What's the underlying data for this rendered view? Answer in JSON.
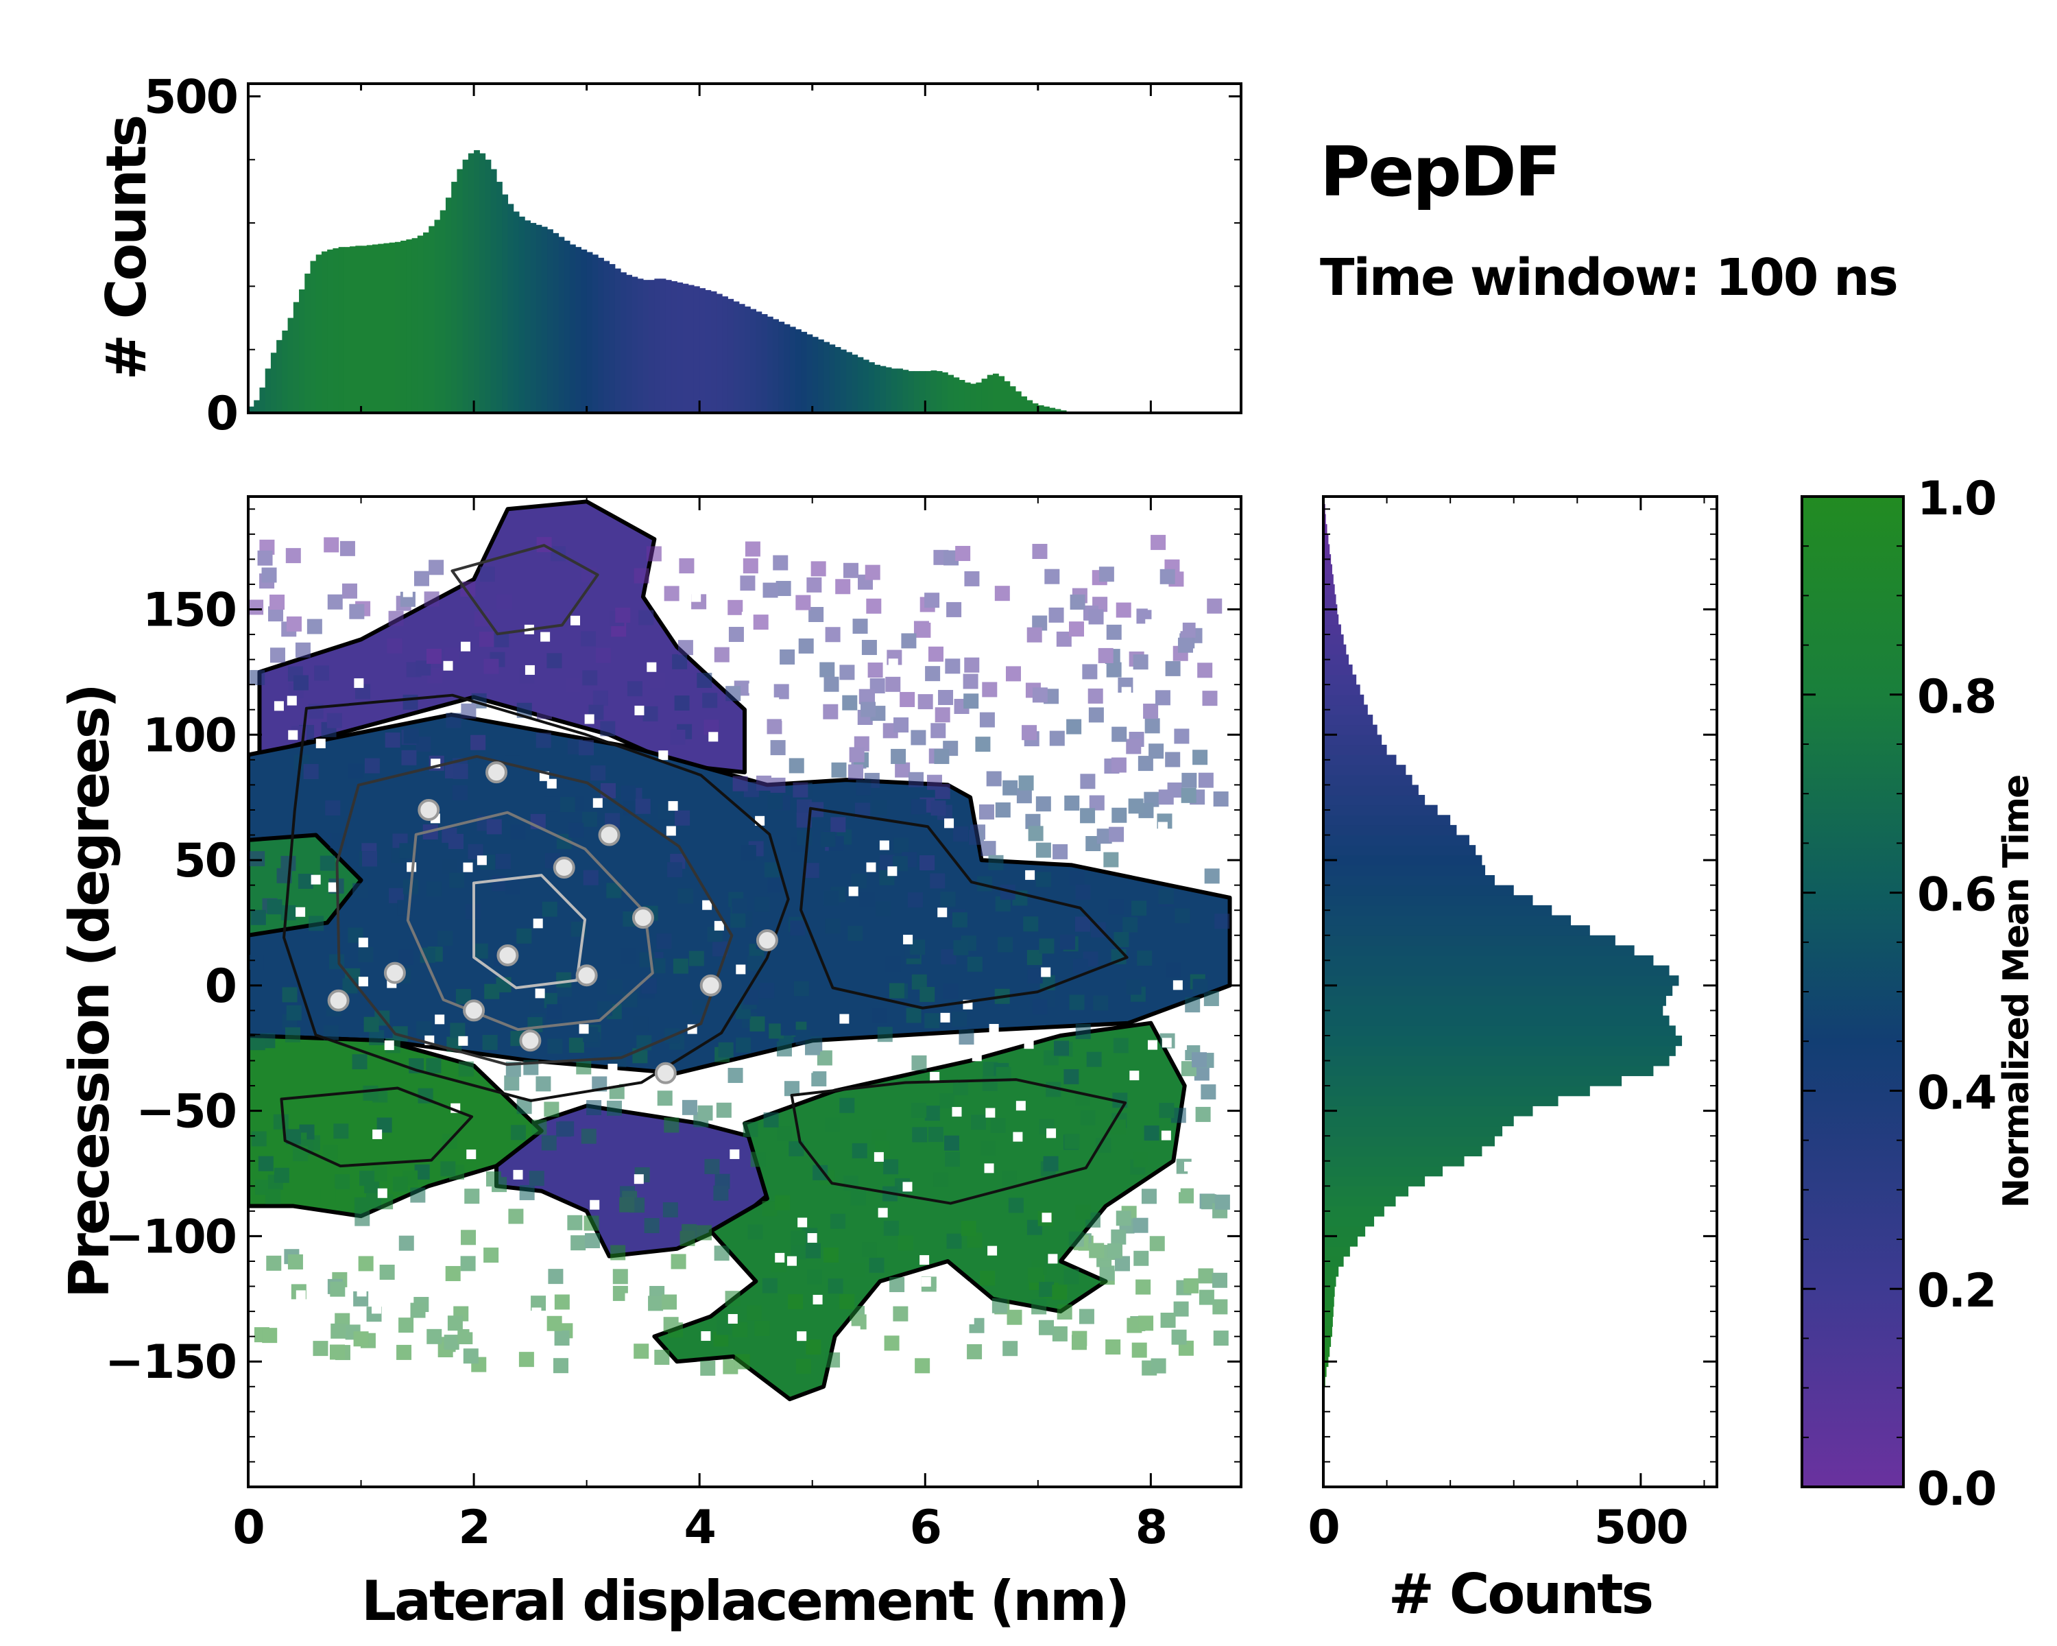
{
  "chart_data": {
    "type": "heatmap",
    "title": "PepDF",
    "subtitle": "Time window: 100 ns",
    "main": {
      "xlabel": "Lateral displacement (nm)",
      "ylabel": "Precession (degrees)",
      "xlim": [
        0,
        8.8
      ],
      "ylim": [
        -200,
        195
      ],
      "xticks": [
        "0",
        "2",
        "4",
        "6",
        "8"
      ],
      "xtick_values": [
        0,
        2,
        4,
        6,
        8
      ],
      "yticks": [
        "150",
        "100",
        "50",
        "0",
        "−50",
        "−100",
        "−150"
      ],
      "ytick_values": [
        150,
        100,
        50,
        0,
        -50,
        -100,
        -150
      ],
      "regions": [
        {
          "name": "upper-purple-lobe",
          "color_value": 0.15,
          "points": [
            [
              0.1,
              125
            ],
            [
              1,
              138
            ],
            [
              2,
              162
            ],
            [
              2.3,
              190
            ],
            [
              3,
              193
            ],
            [
              3.6,
              178
            ],
            [
              3.5,
              155
            ],
            [
              3.8,
              135
            ],
            [
              4.4,
              110
            ],
            [
              4.4,
              85
            ],
            [
              3.8,
              88
            ],
            [
              3.2,
              100
            ],
            [
              2,
              115
            ],
            [
              0.1,
              92
            ]
          ]
        },
        {
          "name": "central-blue-region",
          "color_value": 0.42,
          "points": [
            [
              0,
              92
            ],
            [
              1.8,
              108
            ],
            [
              3.4,
              95
            ],
            [
              4.6,
              80
            ],
            [
              5.3,
              82
            ],
            [
              6.2,
              80
            ],
            [
              6.4,
              75
            ],
            [
              6.5,
              50
            ],
            [
              7.3,
              48
            ],
            [
              8.7,
              35
            ],
            [
              8.7,
              0
            ],
            [
              7.8,
              -15
            ],
            [
              6.5,
              -18
            ],
            [
              5,
              -22
            ],
            [
              3.8,
              -35
            ],
            [
              2.5,
              -30
            ],
            [
              1.2,
              -22
            ],
            [
              0,
              -20
            ]
          ]
        },
        {
          "name": "left-green-patch",
          "color_value": 0.78,
          "points": [
            [
              0,
              58
            ],
            [
              0.6,
              60
            ],
            [
              1,
              42
            ],
            [
              0.7,
              25
            ],
            [
              0,
              20
            ]
          ]
        },
        {
          "name": "lower-purple-lobe",
          "color_value": 0.18,
          "points": [
            [
              2.2,
              -60
            ],
            [
              3,
              -48
            ],
            [
              4,
              -55
            ],
            [
              4.6,
              -62
            ],
            [
              4.7,
              -80
            ],
            [
              4.3,
              -95
            ],
            [
              3.8,
              -105
            ],
            [
              3.2,
              -108
            ],
            [
              3,
              -90
            ],
            [
              2.6,
              -82
            ],
            [
              2.2,
              -80
            ]
          ]
        },
        {
          "name": "lower-left-green-lobe",
          "color_value": 0.92,
          "points": [
            [
              0,
              -20
            ],
            [
              1.2,
              -22
            ],
            [
              2,
              -32
            ],
            [
              2.6,
              -58
            ],
            [
              2.2,
              -72
            ],
            [
              1.6,
              -80
            ],
            [
              1,
              -92
            ],
            [
              0.4,
              -88
            ],
            [
              0,
              -88
            ]
          ]
        },
        {
          "name": "lower-right-green-lobe",
          "color_value": 0.85,
          "points": [
            [
              4.4,
              -55
            ],
            [
              5.2,
              -42
            ],
            [
              6.4,
              -30
            ],
            [
              7.2,
              -20
            ],
            [
              8,
              -15
            ],
            [
              8.3,
              -40
            ],
            [
              8.2,
              -70
            ],
            [
              7.6,
              -88
            ],
            [
              7.2,
              -110
            ],
            [
              7.6,
              -118
            ],
            [
              7.2,
              -130
            ],
            [
              6.6,
              -125
            ],
            [
              6.2,
              -110
            ],
            [
              5.6,
              -118
            ],
            [
              5.2,
              -140
            ],
            [
              5.1,
              -160
            ],
            [
              4.8,
              -165
            ],
            [
              4.3,
              -148
            ],
            [
              3.8,
              -150
            ],
            [
              3.6,
              -140
            ],
            [
              4.1,
              -132
            ],
            [
              4.5,
              -118
            ],
            [
              4.1,
              -98
            ],
            [
              4.6,
              -85
            ]
          ]
        }
      ],
      "overlay": {
        "bright_spots": [
          [
            1.6,
            70
          ],
          [
            2.2,
            85
          ],
          [
            2.8,
            47
          ],
          [
            2.3,
            12
          ],
          [
            3,
            4
          ],
          [
            2.5,
            -22
          ],
          [
            3.7,
            -35
          ],
          [
            0.8,
            -6
          ],
          [
            4.1,
            0
          ],
          [
            1.3,
            5
          ],
          [
            3.5,
            27
          ],
          [
            2,
            -10
          ],
          [
            4.6,
            18
          ],
          [
            3.2,
            60
          ]
        ],
        "contour_rings": [
          {
            "level": "outer",
            "points": [
              [
                0.5,
                110
              ],
              [
                1.8,
                115
              ],
              [
                3,
                100
              ],
              [
                4,
                85
              ],
              [
                4.6,
                60
              ],
              [
                4.8,
                35
              ],
              [
                4.6,
                10
              ],
              [
                4.2,
                -20
              ],
              [
                3.5,
                -40
              ],
              [
                2.5,
                -45
              ],
              [
                1.5,
                -35
              ],
              [
                0.6,
                -20
              ],
              [
                0.3,
                20
              ],
              [
                0.4,
                70
              ]
            ]
          },
          {
            "level": "middle",
            "points": [
              [
                1,
                80
              ],
              [
                2,
                92
              ],
              [
                3,
                80
              ],
              [
                3.8,
                55
              ],
              [
                4.3,
                20
              ],
              [
                4,
                -15
              ],
              [
                3.3,
                -30
              ],
              [
                2.3,
                -32
              ],
              [
                1.3,
                -20
              ],
              [
                0.8,
                10
              ],
              [
                0.8,
                50
              ]
            ]
          },
          {
            "level": "inner",
            "points": [
              [
                1.5,
                60
              ],
              [
                2.3,
                70
              ],
              [
                3,
                55
              ],
              [
                3.5,
                30
              ],
              [
                3.6,
                5
              ],
              [
                3.1,
                -15
              ],
              [
                2.4,
                -18
              ],
              [
                1.7,
                -5
              ],
              [
                1.4,
                25
              ]
            ]
          },
          {
            "level": "core",
            "points": [
              [
                2,
                40
              ],
              [
                2.6,
                45
              ],
              [
                3,
                25
              ],
              [
                2.9,
                2
              ],
              [
                2.4,
                -2
              ],
              [
                2,
                10
              ]
            ]
          },
          {
            "level": "outer",
            "points": [
              [
                5,
                70
              ],
              [
                6,
                62
              ],
              [
                6.4,
                40
              ],
              [
                7.4,
                30
              ],
              [
                7.8,
                10
              ],
              [
                7,
                -2
              ],
              [
                6,
                -8
              ],
              [
                5.2,
                0
              ],
              [
                4.9,
                30
              ]
            ]
          },
          {
            "level": "outer",
            "points": [
              [
                4.8,
                -45
              ],
              [
                5.8,
                -40
              ],
              [
                6.8,
                -38
              ],
              [
                7.8,
                -48
              ],
              [
                7.4,
                -72
              ],
              [
                6.2,
                -88
              ],
              [
                5.2,
                -80
              ],
              [
                4.9,
                -62
              ]
            ]
          },
          {
            "level": "middle",
            "points": [
              [
                1.8,
                165
              ],
              [
                2.6,
                175
              ],
              [
                3.1,
                165
              ],
              [
                2.8,
                145
              ],
              [
                2.2,
                140
              ]
            ]
          },
          {
            "level": "outer",
            "points": [
              [
                0.3,
                -45
              ],
              [
                1.3,
                -40
              ],
              [
                2,
                -52
              ],
              [
                1.6,
                -70
              ],
              [
                0.8,
                -72
              ],
              [
                0.3,
                -62
              ]
            ]
          }
        ]
      }
    },
    "top_histogram": {
      "ylabel": "# Counts",
      "ylim": [
        0,
        520
      ],
      "yticks": [
        "0",
        "500"
      ],
      "ytick_values": [
        0,
        500
      ],
      "bin_width": 0.05,
      "counts": [
        10,
        20,
        40,
        70,
        95,
        115,
        130,
        150,
        175,
        195,
        220,
        240,
        250,
        255,
        258,
        260,
        262,
        262,
        263,
        264,
        264,
        265,
        266,
        267,
        268,
        269,
        270,
        272,
        274,
        276,
        280,
        285,
        295,
        305,
        320,
        340,
        365,
        385,
        400,
        410,
        415,
        410,
        400,
        385,
        365,
        345,
        330,
        318,
        310,
        304,
        300,
        297,
        294,
        290,
        284,
        278,
        272,
        266,
        262,
        258,
        254,
        250,
        245,
        240,
        235,
        228,
        222,
        218,
        215,
        212,
        210,
        210,
        212,
        212,
        210,
        208,
        206,
        204,
        202,
        200,
        197,
        194,
        192,
        188,
        184,
        180,
        176,
        172,
        168,
        164,
        160,
        156,
        152,
        148,
        144,
        140,
        136,
        132,
        128,
        124,
        120,
        116,
        112,
        108,
        104,
        100,
        96,
        92,
        88,
        84,
        80,
        76,
        74,
        72,
        70,
        70,
        68,
        66,
        66,
        66,
        66,
        67,
        66,
        64,
        60,
        56,
        52,
        48,
        46,
        48,
        54,
        60,
        62,
        58,
        50,
        42,
        34,
        26,
        20,
        15,
        12,
        10,
        8,
        6,
        4,
        2,
        0
      ]
    },
    "right_histogram": {
      "xlabel": "# Counts",
      "xlim": [
        0,
        620
      ],
      "xticks": [
        "0",
        "500"
      ],
      "xtick_values": [
        0,
        500
      ],
      "bin_height": 4,
      "bin_centers": [
        -158,
        -154,
        -150,
        -146,
        -142,
        -138,
        -134,
        -130,
        -126,
        -122,
        -118,
        -114,
        -110,
        -106,
        -102,
        -98,
        -94,
        -90,
        -86,
        -82,
        -78,
        -74,
        -70,
        -66,
        -62,
        -58,
        -54,
        -50,
        -46,
        -42,
        -38,
        -34,
        -30,
        -26,
        -22,
        -18,
        -14,
        -10,
        -6,
        -2,
        2,
        6,
        10,
        14,
        18,
        22,
        26,
        30,
        34,
        38,
        42,
        46,
        50,
        54,
        58,
        62,
        66,
        70,
        74,
        78,
        82,
        86,
        90,
        94,
        98,
        102,
        106,
        110,
        114,
        118,
        122,
        126,
        130,
        134,
        138,
        142,
        146,
        150,
        154,
        158,
        162,
        166,
        170,
        174,
        178,
        182,
        186,
        190
      ],
      "counts": [
        3,
        5,
        8,
        10,
        12,
        14,
        15,
        16,
        17,
        18,
        20,
        24,
        32,
        42,
        54,
        66,
        80,
        96,
        114,
        134,
        160,
        188,
        222,
        250,
        270,
        282,
        300,
        330,
        370,
        420,
        470,
        520,
        545,
        555,
        565,
        555,
        545,
        535,
        540,
        550,
        560,
        545,
        520,
        490,
        460,
        420,
        390,
        360,
        330,
        300,
        270,
        255,
        250,
        240,
        230,
        210,
        200,
        180,
        160,
        150,
        140,
        130,
        115,
        100,
        92,
        85,
        78,
        70,
        64,
        58,
        52,
        46,
        40,
        36,
        32,
        28,
        24,
        22,
        20,
        18,
        16,
        14,
        12,
        10,
        8,
        6,
        4,
        3
      ]
    },
    "colorbar": {
      "label": "Normalized Mean Time",
      "range": [
        0,
        1
      ],
      "ticks": [
        "0.0",
        "0.2",
        "0.4",
        "0.6",
        "0.8",
        "1.0"
      ],
      "tick_values": [
        0,
        0.2,
        0.4,
        0.6,
        0.8,
        1
      ],
      "colormap": [
        "#6a329f",
        "#3e3a92",
        "#123e73",
        "#0f5d5e",
        "#1a7f3c",
        "#228b22"
      ]
    }
  }
}
